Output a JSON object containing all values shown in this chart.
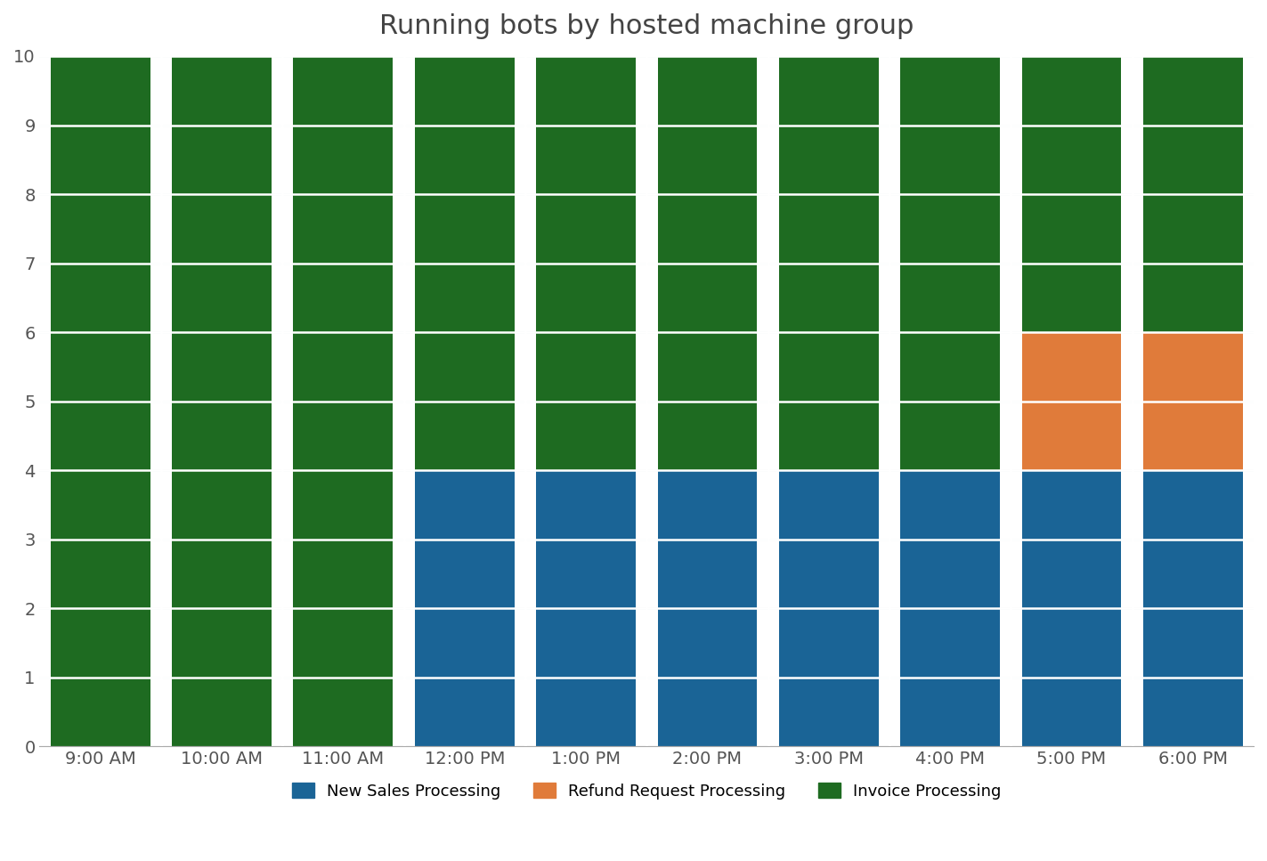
{
  "title": "Running bots by hosted machine group",
  "title_fontsize": 22,
  "title_color": "#444444",
  "categories": [
    "9:00 AM",
    "10:00 AM",
    "11:00 AM",
    "12:00 PM",
    "1:00 PM",
    "2:00 PM",
    "3:00 PM",
    "4:00 PM",
    "5:00 PM",
    "6:00 PM"
  ],
  "new_sales": [
    0,
    0,
    0,
    4,
    4,
    4,
    4,
    4,
    4,
    4
  ],
  "refund_request": [
    0,
    0,
    0,
    0,
    0,
    0,
    0,
    0,
    2,
    2
  ],
  "invoice_processing": [
    10,
    10,
    10,
    6,
    6,
    6,
    6,
    6,
    4,
    4
  ],
  "color_new_sales": "#1a6496",
  "color_refund": "#e07b3a",
  "color_invoice": "#1e6b21",
  "ylim": [
    0,
    10
  ],
  "yticks": [
    0,
    1,
    2,
    3,
    4,
    5,
    6,
    7,
    8,
    9,
    10
  ],
  "bar_width": 0.82,
  "hgrid_color": "#ffffff",
  "hgrid_linewidth": 1.8,
  "hgrid_alpha": 0.9,
  "bgrid_color": "#c5d8e8",
  "bgrid_linewidth": 1.0,
  "background_color": "#ffffff",
  "legend_labels": [
    "New Sales Processing",
    "Refund Request Processing",
    "Invoice Processing"
  ],
  "legend_fontsize": 13,
  "tick_fontsize": 14,
  "tick_color": "#555555"
}
